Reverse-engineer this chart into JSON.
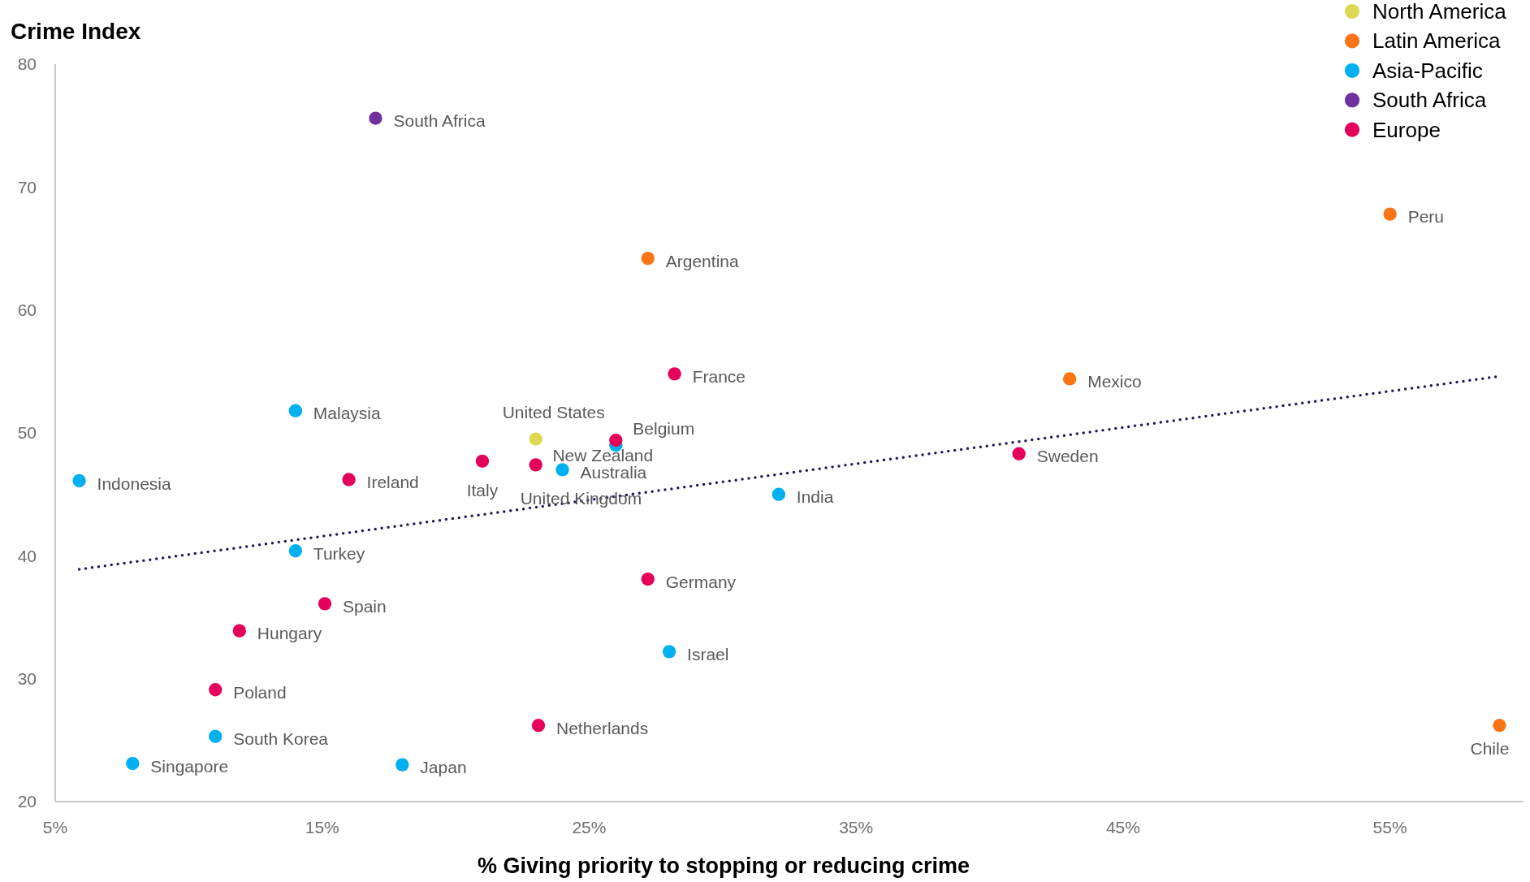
{
  "chart_data": {
    "type": "scatter",
    "ylabel": "Crime Index",
    "xlabel": "% Giving priority to stopping or reducing crime",
    "xlim": [
      5,
      60
    ],
    "xticks": [
      {
        "value": 5,
        "label": "5%"
      },
      {
        "value": 15,
        "label": "15%"
      },
      {
        "value": 25,
        "label": "25%"
      },
      {
        "value": 35,
        "label": "35%"
      },
      {
        "value": 45,
        "label": "45%"
      },
      {
        "value": 55,
        "label": "55%"
      }
    ],
    "ylim": [
      20,
      80
    ],
    "yticks": [
      20,
      30,
      40,
      50,
      60,
      70,
      80
    ],
    "marker": "circle",
    "legend": "top right",
    "series": [
      {
        "name": "North America",
        "color": "#dcd852",
        "x": [
          23.0
        ],
        "values": [
          49.5
        ]
      },
      {
        "name": "Latin America",
        "color": "#f97516",
        "x": [
          27.2,
          55.0,
          43.0,
          59.1
        ],
        "values": [
          64.2,
          67.8,
          54.4,
          26.2
        ]
      },
      {
        "name": "Asia-Pacific",
        "color": "#00b0f0",
        "x": [
          14.0,
          5.9,
          24.0,
          26.0,
          14.0,
          32.1,
          28.0,
          11.0,
          7.9,
          18.0
        ],
        "values": [
          51.8,
          46.1,
          47.0,
          49.0,
          40.4,
          45.0,
          32.2,
          25.3,
          23.1,
          23.0
        ]
      },
      {
        "name": "South Africa",
        "color": "#7030a0",
        "x": [
          17.0
        ],
        "values": [
          75.6
        ]
      },
      {
        "name": "Europe",
        "color": "#e5005b",
        "x": [
          28.2,
          26.0,
          21.0,
          23.0,
          16.0,
          41.1,
          27.2,
          15.1,
          11.9,
          11.0,
          23.1
        ],
        "values": [
          54.8,
          49.4,
          47.7,
          47.4,
          46.2,
          48.3,
          38.1,
          36.1,
          33.9,
          29.1,
          26.2
        ]
      },
      {
        "type": "line",
        "color": "#1b1b5c",
        "line_style": "dotted",
        "marker": "none",
        "x": [
          5.9,
          59.1
        ],
        "values": [
          38.9,
          54.6
        ]
      }
    ],
    "annotations": [
      {
        "text": "United States",
        "x": 23.0,
        "y": 49.5
      },
      {
        "text": "Argentina",
        "x": 27.2,
        "y": 64.2
      },
      {
        "text": "Peru",
        "x": 55.0,
        "y": 67.8
      },
      {
        "text": "Mexico",
        "x": 43.0,
        "y": 54.4
      },
      {
        "text": "Chile",
        "x": 59.1,
        "y": 26.2
      },
      {
        "text": "Malaysia",
        "x": 14.0,
        "y": 51.8
      },
      {
        "text": "Indonesia",
        "x": 5.9,
        "y": 46.1
      },
      {
        "text": "Australia",
        "x": 24.0,
        "y": 47.0
      },
      {
        "text": "New Zealand",
        "x": 26.0,
        "y": 49.0
      },
      {
        "text": "Turkey",
        "x": 14.0,
        "y": 40.4
      },
      {
        "text": "India",
        "x": 32.1,
        "y": 45.0
      },
      {
        "text": "Israel",
        "x": 28.0,
        "y": 32.2
      },
      {
        "text": "South Korea",
        "x": 11.0,
        "y": 25.3
      },
      {
        "text": "Singapore",
        "x": 7.9,
        "y": 23.1
      },
      {
        "text": "Japan",
        "x": 18.0,
        "y": 23.0
      },
      {
        "text": "South Africa",
        "x": 17.0,
        "y": 75.6
      },
      {
        "text": "France",
        "x": 28.2,
        "y": 54.8
      },
      {
        "text": "Belgium",
        "x": 26.0,
        "y": 49.4
      },
      {
        "text": "Italy",
        "x": 21.0,
        "y": 47.7
      },
      {
        "text": "United Kingdom",
        "x": 23.0,
        "y": 47.4
      },
      {
        "text": "Ireland",
        "x": 16.0,
        "y": 46.2
      },
      {
        "text": "Sweden",
        "x": 41.1,
        "y": 48.3
      },
      {
        "text": "Germany",
        "x": 27.2,
        "y": 38.1
      },
      {
        "text": "Spain",
        "x": 15.1,
        "y": 36.1
      },
      {
        "text": "Hungary",
        "x": 11.9,
        "y": 33.9
      },
      {
        "text": "Poland",
        "x": 11.0,
        "y": 29.1
      },
      {
        "text": "Netherlands",
        "x": 23.1,
        "y": 26.2
      }
    ]
  }
}
